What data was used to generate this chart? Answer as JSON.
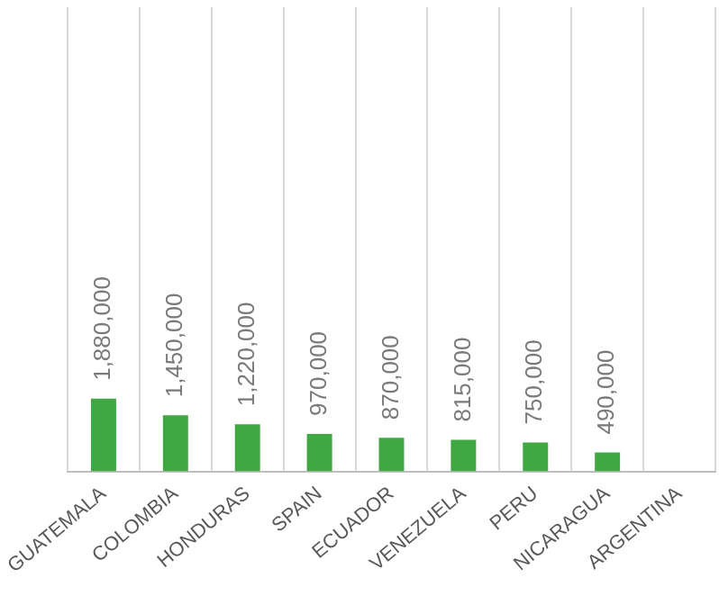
{
  "chart_data": {
    "type": "bar",
    "categories": [
      "GUATEMALA",
      "COLOMBIA",
      "HONDURAS",
      "SPAIN",
      "ECUADOR",
      "VENEZUELA",
      "PERU",
      "NICARAGUA",
      "ARGENTINA"
    ],
    "values": [
      1880000,
      1450000,
      1220000,
      970000,
      870000,
      815000,
      750000,
      490000,
      null
    ],
    "color": "#3fa843",
    "value_labels": [
      "1,880,000",
      "1,450,000",
      "1,220,000",
      "970,000",
      "870,000",
      "815,000",
      "750,000",
      "490,000",
      null
    ],
    "grid": "x"
  }
}
